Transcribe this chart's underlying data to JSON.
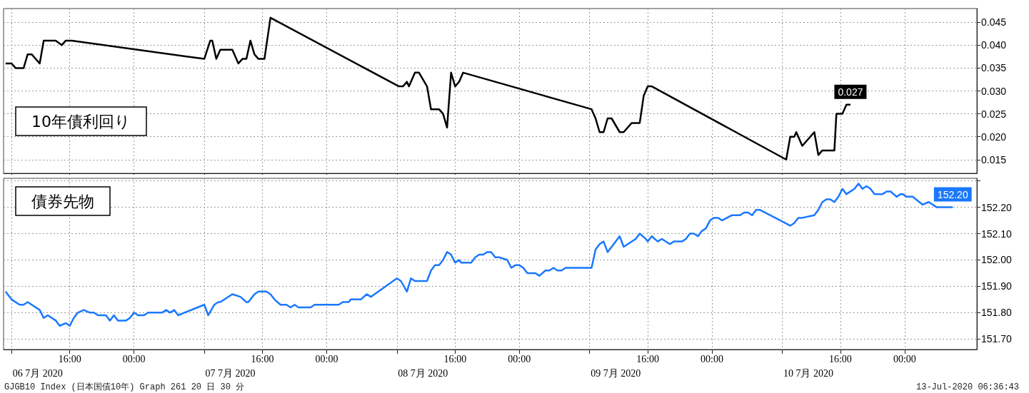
{
  "chart_data": [
    {
      "type": "line",
      "title": "10年債利回り",
      "tick_labels": "y",
      "grid": true,
      "xlim": [
        "2020-07-06T07:45",
        "2020-07-11T09:00"
      ],
      "xticks": [
        {
          "value": "2020-07-06T08:45",
          "label": null
        },
        {
          "value": "2020-07-06T16:00",
          "label": null
        },
        {
          "value": "2020-07-07T00:00",
          "label": null
        },
        {
          "value": "2020-07-07T08:45",
          "label": null
        },
        {
          "value": "2020-07-07T16:00",
          "label": null
        },
        {
          "value": "2020-07-08T00:00",
          "label": null
        },
        {
          "value": "2020-07-08T08:45",
          "label": null
        },
        {
          "value": "2020-07-08T16:00",
          "label": null
        },
        {
          "value": "2020-07-09T00:00",
          "label": null
        },
        {
          "value": "2020-07-09T08:45",
          "label": null
        },
        {
          "value": "2020-07-09T16:00",
          "label": null
        },
        {
          "value": "2020-07-10T00:00",
          "label": null
        },
        {
          "value": "2020-07-10T08:45",
          "label": null
        },
        {
          "value": "2020-07-10T16:00",
          "label": null
        },
        {
          "value": "2020-07-11T00:00",
          "label": null
        }
      ],
      "ylim": [
        0.012,
        0.048
      ],
      "yticks": [
        {
          "value": 0.015,
          "label": "0.015"
        },
        {
          "value": 0.02,
          "label": "0.020"
        },
        {
          "value": 0.025,
          "label": "0.025"
        },
        {
          "value": 0.03,
          "label": "0.030"
        },
        {
          "value": 0.035,
          "label": "0.035"
        },
        {
          "value": 0.04,
          "label": "0.040"
        },
        {
          "value": 0.045,
          "label": "0.045"
        }
      ],
      "series": [
        {
          "color": "#000000",
          "x": [
            "2020-07-06T08:00",
            "2020-07-06T08:45",
            "2020-07-06T09:15",
            "2020-07-06T10:15",
            "2020-07-06T10:45",
            "2020-07-06T11:15",
            "2020-07-06T12:15",
            "2020-07-06T12:45",
            "2020-07-06T14:15",
            "2020-07-06T15:00",
            "2020-07-06T15:30",
            "2020-07-06T16:15",
            "2020-07-07T08:45",
            "2020-07-07T09:30",
            "2020-07-07T09:45",
            "2020-07-07T10:15",
            "2020-07-07T10:45",
            "2020-07-07T12:15",
            "2020-07-07T13:00",
            "2020-07-07T13:30",
            "2020-07-07T14:00",
            "2020-07-07T14:30",
            "2020-07-07T15:00",
            "2020-07-07T15:30",
            "2020-07-07T16:15",
            "2020-07-07T17:00",
            "2020-07-08T09:00",
            "2020-07-08T09:30",
            "2020-07-08T10:00",
            "2020-07-08T10:15",
            "2020-07-08T11:00",
            "2020-07-08T11:30",
            "2020-07-08T12:30",
            "2020-07-08T13:00",
            "2020-07-08T14:00",
            "2020-07-08T14:30",
            "2020-07-08T15:00",
            "2020-07-08T15:30",
            "2020-07-08T16:00",
            "2020-07-08T16:30",
            "2020-07-08T17:00",
            "2020-07-09T09:00",
            "2020-07-09T09:30",
            "2020-07-09T10:00",
            "2020-07-09T10:30",
            "2020-07-09T11:00",
            "2020-07-09T11:30",
            "2020-07-09T12:30",
            "2020-07-09T13:00",
            "2020-07-09T14:00",
            "2020-07-09T15:00",
            "2020-07-09T15:30",
            "2020-07-09T16:00",
            "2020-07-09T16:30",
            "2020-07-10T09:15",
            "2020-07-10T09:45",
            "2020-07-10T10:15",
            "2020-07-10T10:30",
            "2020-07-10T11:15",
            "2020-07-10T12:45",
            "2020-07-10T13:15",
            "2020-07-10T13:45",
            "2020-07-10T15:15",
            "2020-07-10T15:30",
            "2020-07-10T16:15",
            "2020-07-10T16:45",
            "2020-07-10T17:15"
          ],
          "values": [
            0.036,
            0.036,
            0.035,
            0.035,
            0.038,
            0.038,
            0.036,
            0.041,
            0.041,
            0.04,
            0.041,
            0.041,
            0.037,
            0.041,
            0.041,
            0.037,
            0.039,
            0.039,
            0.036,
            0.037,
            0.037,
            0.041,
            0.038,
            0.037,
            0.037,
            0.046,
            0.031,
            0.031,
            0.032,
            0.031,
            0.034,
            0.034,
            0.031,
            0.026,
            0.026,
            0.025,
            0.022,
            0.034,
            0.031,
            0.032,
            0.034,
            0.026,
            0.024,
            0.021,
            0.021,
            0.024,
            0.024,
            0.021,
            0.021,
            0.023,
            0.023,
            0.029,
            0.031,
            0.031,
            0.015,
            0.02,
            0.02,
            0.021,
            0.018,
            0.021,
            0.016,
            0.017,
            0.017,
            0.025,
            0.025,
            0.027,
            0.027
          ],
          "value_labels": [
            null,
            null,
            null,
            null,
            null,
            null,
            null,
            null,
            null,
            null,
            null,
            null,
            null,
            null,
            null,
            null,
            null,
            null,
            null,
            null,
            null,
            null,
            null,
            null,
            null,
            null,
            null,
            null,
            null,
            null,
            null,
            null,
            null,
            null,
            null,
            null,
            null,
            null,
            null,
            null,
            null,
            null,
            null,
            null,
            null,
            null,
            null,
            null,
            null,
            null,
            null,
            null,
            null,
            null,
            null,
            null,
            null,
            null,
            null,
            null,
            null,
            null,
            null,
            null,
            null,
            null,
            "0.027"
          ]
        }
      ]
    },
    {
      "type": "line",
      "title": "債券先物",
      "grid": true,
      "xlim": [
        "2020-07-06T07:45",
        "2020-07-11T09:00"
      ],
      "xticks": [
        {
          "value": "2020-07-06T08:45",
          "label": null
        },
        {
          "value": "2020-07-06T16:00",
          "label": "16:00"
        },
        {
          "value": "2020-07-07T00:00",
          "label": "00:00"
        },
        {
          "value": "2020-07-07T08:45",
          "label": null
        },
        {
          "value": "2020-07-07T16:00",
          "label": "16:00"
        },
        {
          "value": "2020-07-08T00:00",
          "label": "00:00"
        },
        {
          "value": "2020-07-08T08:45",
          "label": null
        },
        {
          "value": "2020-07-08T16:00",
          "label": "16:00"
        },
        {
          "value": "2020-07-09T00:00",
          "label": "00:00"
        },
        {
          "value": "2020-07-09T08:45",
          "label": null
        },
        {
          "value": "2020-07-09T16:00",
          "label": "16:00"
        },
        {
          "value": "2020-07-10T00:00",
          "label": "00:00"
        },
        {
          "value": "2020-07-10T08:45",
          "label": null
        },
        {
          "value": "2020-07-10T16:00",
          "label": "16:00"
        },
        {
          "value": "2020-07-11T00:00",
          "label": "00:00"
        }
      ],
      "x2lim": [
        "2020-07-06T07:45",
        "2020-07-11T09:00"
      ],
      "x2ticks": [
        {
          "value": "2020-07-06T12:00",
          "label": "06 7月 2020"
        },
        {
          "value": "2020-07-07T12:00",
          "label": "07 7月 2020"
        },
        {
          "value": "2020-07-08T12:00",
          "label": "08 7月 2020"
        },
        {
          "value": "2020-07-09T12:00",
          "label": "09 7月 2020"
        },
        {
          "value": "2020-07-10T12:00",
          "label": "10 7月 2020"
        }
      ],
      "ylim": [
        151.66,
        152.31
      ],
      "yticks": [
        {
          "value": 151.7,
          "label": "151.70"
        },
        {
          "value": 151.8,
          "label": "151.80"
        },
        {
          "value": 151.9,
          "label": "151.90"
        },
        {
          "value": 152.0,
          "label": "152.00"
        },
        {
          "value": 152.1,
          "label": "152.10"
        },
        {
          "value": 152.2,
          "label": "152.20"
        },
        {
          "value": 152.3,
          "label": null
        }
      ],
      "annotations": [
        "GJGB10 Index (日本国債10年) Graph 261 20 日 30 分",
        "13-Jul-2020 06:36:43"
      ],
      "series": [
        {
          "color": "#1a78ff",
          "x": [
            "2020-07-06T08:00",
            "2020-07-06T08:15",
            "2020-07-06T08:45",
            "2020-07-06T09:45",
            "2020-07-06T10:15",
            "2020-07-06T10:45",
            "2020-07-06T11:15",
            "2020-07-06T12:15",
            "2020-07-06T12:45",
            "2020-07-06T13:15",
            "2020-07-06T14:15",
            "2020-07-06T14:45",
            "2020-07-06T15:30",
            "2020-07-06T16:00",
            "2020-07-06T16:30",
            "2020-07-06T17:00",
            "2020-07-06T17:45",
            "2020-07-06T18:30",
            "2020-07-06T19:00",
            "2020-07-06T19:30",
            "2020-07-06T20:30",
            "2020-07-06T21:00",
            "2020-07-06T21:30",
            "2020-07-06T22:00",
            "2020-07-06T23:00",
            "2020-07-06T23:30",
            "2020-07-07T00:00",
            "2020-07-07T00:30",
            "2020-07-07T01:15",
            "2020-07-07T01:45",
            "2020-07-07T03:30",
            "2020-07-07T04:00",
            "2020-07-07T04:30",
            "2020-07-07T05:00",
            "2020-07-07T05:30",
            "2020-07-07T08:45",
            "2020-07-07T09:15",
            "2020-07-07T10:00",
            "2020-07-07T10:30",
            "2020-07-07T10:45",
            "2020-07-07T12:15",
            "2020-07-07T13:15",
            "2020-07-07T14:00",
            "2020-07-07T14:15",
            "2020-07-07T15:00",
            "2020-07-07T15:30",
            "2020-07-07T16:30",
            "2020-07-07T17:00",
            "2020-07-07T17:30",
            "2020-07-07T18:15",
            "2020-07-07T19:00",
            "2020-07-07T19:30",
            "2020-07-07T20:00",
            "2020-07-07T20:30",
            "2020-07-07T22:00",
            "2020-07-07T22:30",
            "2020-07-08T01:30",
            "2020-07-08T02:00",
            "2020-07-08T02:45",
            "2020-07-08T03:00",
            "2020-07-08T04:15",
            "2020-07-08T05:00",
            "2020-07-08T05:30",
            "2020-07-08T08:45",
            "2020-07-08T09:15",
            "2020-07-08T10:00",
            "2020-07-08T10:30",
            "2020-07-08T11:00",
            "2020-07-08T12:30",
            "2020-07-08T13:00",
            "2020-07-08T13:30",
            "2020-07-08T14:00",
            "2020-07-08T14:30",
            "2020-07-08T15:00",
            "2020-07-08T15:30",
            "2020-07-08T16:00",
            "2020-07-08T16:30",
            "2020-07-08T16:45",
            "2020-07-08T18:00",
            "2020-07-08T18:30",
            "2020-07-08T19:00",
            "2020-07-08T19:30",
            "2020-07-08T20:00",
            "2020-07-08T20:30",
            "2020-07-08T21:00",
            "2020-07-08T21:30",
            "2020-07-08T22:30",
            "2020-07-08T23:00",
            "2020-07-08T23:30",
            "2020-07-09T00:00",
            "2020-07-09T00:30",
            "2020-07-09T01:00",
            "2020-07-09T02:00",
            "2020-07-09T02:30",
            "2020-07-09T03:15",
            "2020-07-09T03:45",
            "2020-07-09T04:15",
            "2020-07-09T04:45",
            "2020-07-09T05:15",
            "2020-07-09T05:45",
            "2020-07-09T09:00",
            "2020-07-09T09:30",
            "2020-07-09T10:00",
            "2020-07-09T10:30",
            "2020-07-09T11:00",
            "2020-07-09T12:30",
            "2020-07-09T13:00",
            "2020-07-09T14:30",
            "2020-07-09T15:00",
            "2020-07-09T15:45",
            "2020-07-09T16:00",
            "2020-07-09T16:30",
            "2020-07-09T17:15",
            "2020-07-09T17:45",
            "2020-07-09T18:45",
            "2020-07-09T19:15",
            "2020-07-09T20:15",
            "2020-07-09T20:45",
            "2020-07-09T21:15",
            "2020-07-09T21:45",
            "2020-07-09T22:15",
            "2020-07-09T22:45",
            "2020-07-09T23:15",
            "2020-07-09T23:45",
            "2020-07-10T00:15",
            "2020-07-10T00:45",
            "2020-07-10T01:15",
            "2020-07-10T02:30",
            "2020-07-10T03:30",
            "2020-07-10T04:00",
            "2020-07-10T04:30",
            "2020-07-10T05:00",
            "2020-07-10T05:30",
            "2020-07-10T06:00",
            "2020-07-10T09:45",
            "2020-07-10T10:15",
            "2020-07-10T10:45",
            "2020-07-10T11:15",
            "2020-07-10T12:45",
            "2020-07-10T13:15",
            "2020-07-10T13:45",
            "2020-07-10T14:15",
            "2020-07-10T14:45",
            "2020-07-10T15:15",
            "2020-07-10T15:45",
            "2020-07-10T16:15",
            "2020-07-10T16:45",
            "2020-07-10T17:45",
            "2020-07-10T18:15",
            "2020-07-10T18:45",
            "2020-07-10T19:15",
            "2020-07-10T19:45",
            "2020-07-10T20:15",
            "2020-07-10T21:15",
            "2020-07-10T21:45",
            "2020-07-10T22:15",
            "2020-07-10T23:00",
            "2020-07-10T23:30",
            "2020-07-10T23:45",
            "2020-07-11T00:15",
            "2020-07-11T01:00",
            "2020-07-11T02:15",
            "2020-07-11T03:00",
            "2020-07-11T04:00",
            "2020-07-11T06:00"
          ],
          "values": [
            151.88,
            151.87,
            151.85,
            151.83,
            151.83,
            151.84,
            151.83,
            151.81,
            151.78,
            151.79,
            151.77,
            151.75,
            151.76,
            151.75,
            151.78,
            151.8,
            151.81,
            151.8,
            151.8,
            151.79,
            151.79,
            151.77,
            151.79,
            151.77,
            151.77,
            151.78,
            151.8,
            151.79,
            151.79,
            151.8,
            151.8,
            151.81,
            151.8,
            151.81,
            151.79,
            151.83,
            151.79,
            151.83,
            151.84,
            151.84,
            151.87,
            151.86,
            151.84,
            151.84,
            151.87,
            151.88,
            151.88,
            151.87,
            151.85,
            151.83,
            151.83,
            151.82,
            151.83,
            151.82,
            151.82,
            151.83,
            151.83,
            151.84,
            151.84,
            151.85,
            151.85,
            151.87,
            151.86,
            151.93,
            151.92,
            151.88,
            151.93,
            151.92,
            151.92,
            151.96,
            151.98,
            151.98,
            152.0,
            152.03,
            152.02,
            151.99,
            152.0,
            151.99,
            151.99,
            152.01,
            152.02,
            152.02,
            152.03,
            152.03,
            152.01,
            152.01,
            152.0,
            151.97,
            151.98,
            151.98,
            151.97,
            151.95,
            151.95,
            151.94,
            151.96,
            151.96,
            151.97,
            151.96,
            151.96,
            151.97,
            151.97,
            152.04,
            152.06,
            152.07,
            152.03,
            152.09,
            152.05,
            152.08,
            152.1,
            152.08,
            152.07,
            152.09,
            152.07,
            152.08,
            152.06,
            152.07,
            152.07,
            152.08,
            152.1,
            152.1,
            152.09,
            152.11,
            152.12,
            152.15,
            152.16,
            152.16,
            152.15,
            152.17,
            152.17,
            152.18,
            152.18,
            152.17,
            152.19,
            152.19,
            152.13,
            152.14,
            152.16,
            152.16,
            152.17,
            152.19,
            152.22,
            152.23,
            152.23,
            152.22,
            152.24,
            152.27,
            152.25,
            152.27,
            152.29,
            152.27,
            152.28,
            152.27,
            152.25,
            152.25,
            152.26,
            152.26,
            152.24,
            152.25,
            152.25,
            152.24,
            152.24,
            152.21,
            152.22,
            152.2,
            152.2
          ],
          "value_labels": [
            null,
            null,
            null,
            null,
            null,
            null,
            null,
            null,
            null,
            null,
            null,
            null,
            null,
            null,
            null,
            null,
            null,
            null,
            null,
            null,
            null,
            null,
            null,
            null,
            null,
            null,
            null,
            null,
            null,
            null,
            null,
            null,
            null,
            null,
            null,
            null,
            null,
            null,
            null,
            null,
            null,
            null,
            null,
            null,
            null,
            null,
            null,
            null,
            null,
            null,
            null,
            null,
            null,
            null,
            null,
            null,
            null,
            null,
            null,
            null,
            null,
            null,
            null,
            null,
            null,
            null,
            null,
            null,
            null,
            null,
            null,
            null,
            null,
            null,
            null,
            null,
            null,
            null,
            null,
            null,
            null,
            null,
            null,
            null,
            null,
            null,
            null,
            null,
            null,
            null,
            null,
            null,
            null,
            null,
            null,
            null,
            null,
            null,
            null,
            null,
            null,
            null,
            null,
            null,
            null,
            null,
            null,
            null,
            null,
            null,
            null,
            null,
            null,
            null,
            null,
            null,
            null,
            null,
            null,
            null,
            null,
            null,
            null,
            null,
            null,
            null,
            null,
            null,
            null,
            null,
            null,
            null,
            null,
            null,
            null,
            null,
            null,
            null,
            null,
            null,
            null,
            null,
            null,
            null,
            null,
            null,
            null,
            null,
            null,
            null,
            null,
            null,
            null,
            null,
            null,
            null,
            null,
            null,
            null,
            null,
            null,
            null,
            null,
            null,
            "152.20"
          ]
        }
      ]
    }
  ]
}
